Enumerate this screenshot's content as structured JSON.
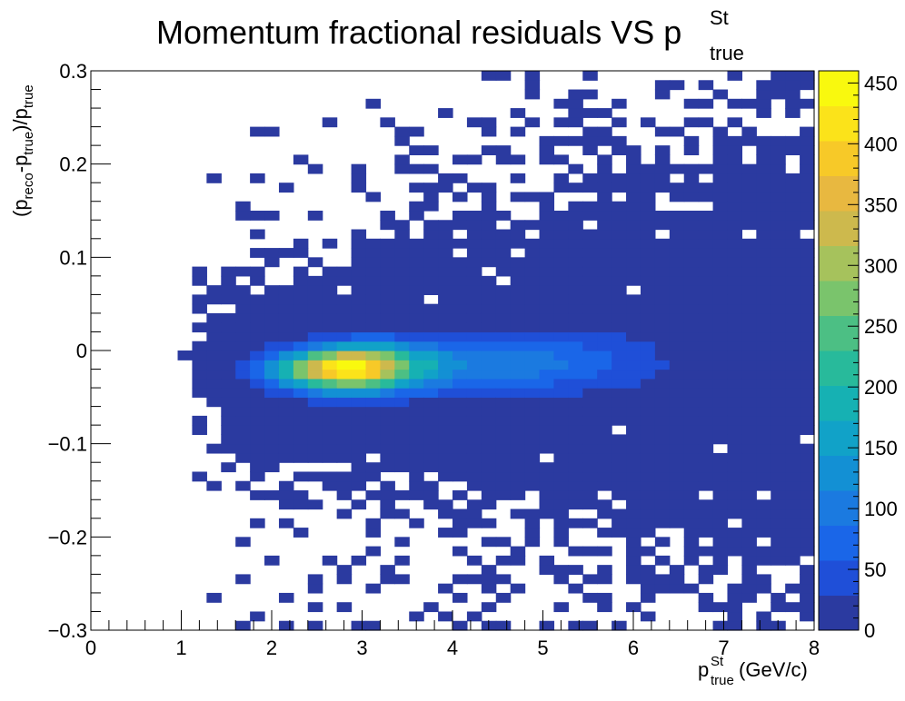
{
  "chart_data": {
    "type": "heatmap",
    "title": {
      "main": "Momentum fractional residuals VS p",
      "sup": "St",
      "sub": "true"
    },
    "xlabel": {
      "p": "p",
      "sup": "St",
      "sub": "true",
      "unit": "(GeV/c)"
    },
    "ylabel": {
      "open": "(p",
      "sub1": "reco",
      "mid": "-p",
      "sub2": "true",
      "close": ")/p",
      "sub3": "true"
    },
    "xlim": [
      0,
      8
    ],
    "ylim": [
      -0.3,
      0.3
    ],
    "x_ticks": [
      {
        "v": 0,
        "label": "0"
      },
      {
        "v": 1,
        "label": "1"
      },
      {
        "v": 2,
        "label": "2"
      },
      {
        "v": 3,
        "label": "3"
      },
      {
        "v": 4,
        "label": "4"
      },
      {
        "v": 5,
        "label": "5"
      },
      {
        "v": 6,
        "label": "6"
      },
      {
        "v": 7,
        "label": "7"
      },
      {
        "v": 8,
        "label": "8"
      }
    ],
    "y_ticks": [
      {
        "v": -0.3,
        "label": "−0.3"
      },
      {
        "v": -0.2,
        "label": "−0.2"
      },
      {
        "v": -0.1,
        "label": "−0.1"
      },
      {
        "v": 0,
        "label": "0"
      },
      {
        "v": 0.1,
        "label": "0.1"
      },
      {
        "v": 0.2,
        "label": "0.2"
      },
      {
        "v": 0.3,
        "label": "0.3"
      }
    ],
    "z_range": [
      0,
      460
    ],
    "z_ticks": [
      {
        "v": 0,
        "label": "0"
      },
      {
        "v": 50,
        "label": "50"
      },
      {
        "v": 100,
        "label": "100"
      },
      {
        "v": 150,
        "label": "150"
      },
      {
        "v": 200,
        "label": "200"
      },
      {
        "v": 250,
        "label": "250"
      },
      {
        "v": 300,
        "label": "300"
      },
      {
        "v": 350,
        "label": "350"
      },
      {
        "v": 400,
        "label": "400"
      },
      {
        "v": 450,
        "label": "450"
      }
    ],
    "x_bins": {
      "n": 50,
      "min": 0,
      "max": 8
    },
    "y_bins": {
      "n": 60,
      "min": -0.3,
      "max": 0.3
    },
    "colormap": [
      "#2b3aa0",
      "#1f4fd8",
      "#1a66e8",
      "#1b7ae0",
      "#1390d4",
      "#11a2c8",
      "#16b1b3",
      "#28ba9b",
      "#4cbf84",
      "#7ac46c",
      "#a6c25c",
      "#cdb94d",
      "#e8b840",
      "#f7c928",
      "#fbe31a",
      "#f9f90e"
    ],
    "cells": [
      {
        "x": 1.7,
        "y": -0.295,
        "z": 3
      },
      {
        "x": 2.1,
        "y": -0.295,
        "z": 3
      },
      {
        "x": 2.4,
        "y": -0.295,
        "z": 3
      },
      {
        "x": 3.0,
        "y": -0.295,
        "z": 3
      },
      {
        "x": 5.1,
        "y": -0.295,
        "z": 3
      },
      {
        "x": 5.4,
        "y": -0.295,
        "z": 3
      },
      {
        "x": 4.1,
        "y": -0.295,
        "z": 2
      },
      {
        "x": 2.4,
        "y": -0.275,
        "z": 3
      },
      {
        "x": 2.8,
        "y": -0.275,
        "z": 3
      },
      {
        "x": 3.7,
        "y": -0.275,
        "z": 2
      },
      {
        "x": 5.2,
        "y": -0.275,
        "z": 2
      },
      {
        "x": 1.4,
        "y": -0.265,
        "z": 2
      },
      {
        "x": 2.2,
        "y": -0.265,
        "z": 3
      },
      {
        "x": 6.1,
        "y": -0.265,
        "z": 2
      },
      {
        "x": 7.9,
        "y": -0.255,
        "z": 2
      },
      {
        "x": 3.9,
        "y": -0.255,
        "z": 2
      },
      {
        "x": 2.5,
        "y": -0.255,
        "z": 3
      },
      {
        "x": 1.6,
        "y": -0.245,
        "z": 2
      },
      {
        "x": 3.2,
        "y": -0.245,
        "z": 2
      },
      {
        "x": 7.3,
        "y": -0.245,
        "z": 2
      }
    ],
    "colorbar_label": ""
  }
}
